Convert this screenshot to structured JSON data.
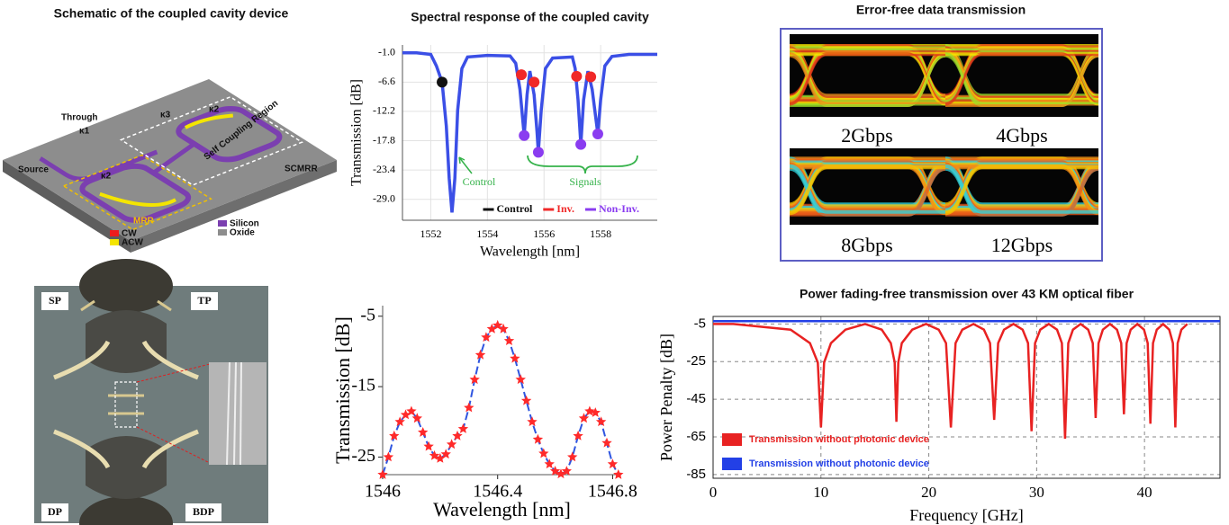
{
  "schematic": {
    "title": "Schematic of the coupled cavity device",
    "labels": [
      "Through",
      "κ1",
      "Source",
      "κ2",
      "κ3",
      "κ2",
      "Self Coupling Region",
      "SCMRR",
      "MRR",
      "CW",
      "ACW",
      "Silicon",
      "Oxide"
    ]
  },
  "eye_diagrams": {
    "title": "Error-free data transmission",
    "rates": [
      "2Gbps",
      "4Gbps",
      "8Gbps",
      "12Gbps"
    ]
  },
  "micrograph": {
    "labels": [
      "SP",
      "TP",
      "DP",
      "BDP"
    ]
  },
  "chart_data": [
    {
      "type": "line",
      "title": "Spectral response of the coupled cavity",
      "x_label": "Wavelength [nm]",
      "y_label": "Transmission [dB]",
      "xlim": [
        1551,
        1560
      ],
      "ylim": [
        -33,
        0.5
      ],
      "xticks": [
        1552,
        1554,
        1556,
        1558
      ],
      "yticks": [
        {
          "value": -1,
          "label": "-1.0"
        },
        -6.6,
        -12.2,
        -17.8,
        -23.4,
        {
          "value": -29,
          "label": "-29.0"
        }
      ],
      "grid": true,
      "legend": "lower right",
      "annotations": [
        "Control",
        "Signals"
      ],
      "annotation_color": "#35b24a",
      "series": [
        {
          "color": "#3b4fe6",
          "x": [
            1551.0,
            1551.5,
            1552.0,
            1552.2,
            1552.4,
            1552.55,
            1552.65,
            1552.75,
            1552.85,
            1552.95,
            1553.1,
            1553.3,
            1554.0,
            1554.8,
            1555.0,
            1555.15,
            1555.3,
            1555.4,
            1555.5,
            1555.65,
            1555.75,
            1555.8,
            1555.9,
            1556.05,
            1556.3,
            1557.0,
            1557.1,
            1557.2,
            1557.3,
            1557.4,
            1557.55,
            1557.7,
            1557.9,
            1558.0,
            1558.15,
            1558.4,
            1559.0,
            1560.0
          ],
          "values": [
            -1.0,
            -1.0,
            -1.3,
            -3.5,
            -6.6,
            -15,
            -25,
            -31.5,
            -25,
            -12,
            -4,
            -1.8,
            -1.5,
            -1.6,
            -3,
            -8,
            -16.8,
            -9,
            -4.5,
            -9,
            -16,
            -20,
            -12,
            -4,
            -2,
            -1.8,
            -4,
            -10,
            -18.5,
            -10,
            -4.5,
            -8,
            -16.5,
            -10,
            -3.5,
            -1.7,
            -1.3,
            -1.3
          ]
        },
        {
          "name": "Control",
          "color": "#111111",
          "mode": "markers",
          "marker": "circle",
          "x": [
            1552.4
          ],
          "values": [
            -6.6
          ]
        },
        {
          "name": "Inv.",
          "color": "#f02828",
          "mode": "markers",
          "marker": "circle",
          "x": [
            1555.2,
            1555.65,
            1557.15,
            1557.65
          ],
          "values": [
            -5.2,
            -6.6,
            -5.5,
            -5.6
          ]
        },
        {
          "name": "Non-Inv.",
          "color": "#8a3cf0",
          "mode": "markers",
          "marker": "circle",
          "x": [
            1555.3,
            1555.8,
            1557.3,
            1557.9
          ],
          "values": [
            -16.8,
            -20,
            -18.5,
            -16.5
          ]
        }
      ]
    },
    {
      "type": "line",
      "x_label": "Wavelength [nm]",
      "y_label": "Transmission [dB]",
      "xlim": [
        1546,
        1546.83
      ],
      "ylim": [
        -27.5,
        -3.5
      ],
      "xticks": [
        1546,
        1546.4,
        1546.8
      ],
      "yticks": [
        -5,
        -15,
        -25
      ],
      "grid": false,
      "series": [
        {
          "color": "#2f55e0",
          "line_style": "dashed",
          "marker": "star",
          "marker_color": "#ff2a2a",
          "x": [
            1546.0,
            1546.02,
            1546.04,
            1546.06,
            1546.08,
            1546.1,
            1546.12,
            1546.14,
            1546.16,
            1546.18,
            1546.2,
            1546.22,
            1546.24,
            1546.26,
            1546.28,
            1546.3,
            1546.32,
            1546.34,
            1546.36,
            1546.38,
            1546.4,
            1546.42,
            1546.44,
            1546.46,
            1546.48,
            1546.5,
            1546.52,
            1546.54,
            1546.56,
            1546.58,
            1546.6,
            1546.62,
            1546.64,
            1546.66,
            1546.68,
            1546.7,
            1546.72,
            1546.74,
            1546.76,
            1546.78,
            1546.8,
            1546.82
          ],
          "values": [
            -27.5,
            -25,
            -22,
            -20,
            -19,
            -18.5,
            -19.5,
            -21.5,
            -23.5,
            -24.8,
            -25.2,
            -24.6,
            -23.2,
            -22,
            -21,
            -18,
            -14,
            -10.5,
            -8,
            -6.8,
            -6.3,
            -6.8,
            -8.5,
            -11,
            -14,
            -17,
            -20,
            -22.5,
            -24.5,
            -26,
            -27,
            -27.4,
            -27,
            -25,
            -22,
            -19.5,
            -18.5,
            -18.7,
            -20,
            -23,
            -26,
            -27.5
          ]
        }
      ]
    },
    {
      "type": "line",
      "title": "Power fading-free transmission over 43 KM optical fiber",
      "x_label": "Frequency [GHz]",
      "y_label": "Power Penalty [dB]",
      "xlim": [
        0,
        47
      ],
      "ylim": [
        -87,
        -1
      ],
      "xticks": [
        0,
        10,
        20,
        30,
        40
      ],
      "yticks": [
        -5,
        -25,
        -45,
        -65,
        -85
      ],
      "grid": true,
      "legend": "lower left",
      "series": [
        {
          "name": "Transmission without photonic device",
          "color": "#e82222",
          "x": [
            0,
            1.87,
            7.19,
            8.98,
            9.71,
            10,
            10.29,
            10.93,
            12.27,
            14.1,
            15.64,
            16.48,
            16.84,
            17,
            17.17,
            17.5,
            18.47,
            19.74,
            20.92,
            21.6,
            22.05,
            22.48,
            23.11,
            24.14,
            25.11,
            25.68,
            26.06,
            26.43,
            26.97,
            27.85,
            28.7,
            29.2,
            29.53,
            29.85,
            30.34,
            31.12,
            31.89,
            32.34,
            32.63,
            32.93,
            33.37,
            34.08,
            34.78,
            35.2,
            35.47,
            35.74,
            36.14,
            36.8,
            37.45,
            37.84,
            38.09,
            38.34,
            38.72,
            39.34,
            39.95,
            40.3,
            40.55,
            40.79,
            41.14,
            41.72,
            42.29,
            42.63,
            42.86,
            43.08,
            43.42,
            43.97
          ],
          "values": [
            -5,
            -5,
            -8,
            -15.2,
            -25.5,
            -60,
            -25.5,
            -15.2,
            -8,
            -5,
            -8,
            -15.2,
            -25.5,
            -57,
            -25.5,
            -15.2,
            -8,
            -5,
            -8,
            -15.2,
            -60,
            -15.2,
            -8,
            -5,
            -8,
            -15.2,
            -56,
            -15.2,
            -8,
            -5,
            -8,
            -15.2,
            -62,
            -15.2,
            -8,
            -5,
            -8,
            -15.2,
            -66,
            -15.2,
            -8,
            -5,
            -8,
            -15.2,
            -55,
            -15.2,
            -8,
            -5,
            -8,
            -15.2,
            -53,
            -15.2,
            -8,
            -5,
            -8,
            -15.2,
            -58,
            -15.2,
            -8,
            -5,
            -8,
            -15.2,
            -60,
            -15.2,
            -8,
            -5
          ]
        },
        {
          "name": "Transmission without photonic device",
          "color": "#2340e6",
          "x": [
            0,
            47
          ],
          "values": [
            -3.5,
            -3.5
          ]
        }
      ]
    }
  ]
}
